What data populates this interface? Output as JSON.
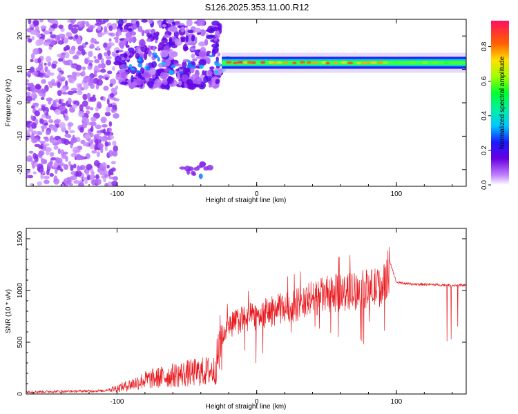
{
  "title": "S126.2025.353.11.00.R12",
  "chart_data": [
    {
      "type": "heatmap",
      "xlabel": "Height of straight line (km)",
      "ylabel": "Frequency (Hz)",
      "xlim": [
        -165,
        150
      ],
      "ylim": [
        -25,
        25
      ],
      "xticks": [
        -100,
        0,
        100
      ],
      "yticks": [
        -20,
        -10,
        0,
        10,
        20
      ],
      "xtick_labels": [
        "-100",
        "0",
        "100"
      ],
      "ytick_labels": [
        "-20",
        "-10",
        "0",
        "10",
        "20"
      ],
      "colorbar": {
        "label": "Normalized spectral amplitude",
        "range": [
          0,
          0.95
        ],
        "ticks": [
          0.0,
          0.2,
          0.4,
          0.6,
          0.8
        ],
        "tick_labels": [
          "0.0",
          "0.2",
          "0.4",
          "0.6",
          "0.8"
        ]
      },
      "regions": [
        {
          "name": "noise",
          "x_range": [
            -165,
            -100
          ],
          "freq_range": [
            -25,
            25
          ],
          "typical_amplitude": 0.05
        },
        {
          "name": "turbulent-signal",
          "x_range": [
            -100,
            -25
          ],
          "freq_range": [
            5,
            25
          ],
          "typical_amplitude": 0.1
        },
        {
          "name": "tone-line",
          "x_range": [
            -25,
            150
          ],
          "center_freq_hz": 12,
          "typical_amplitude": 0.45
        }
      ]
    },
    {
      "type": "line",
      "xlabel": "Height of straight line (km)",
      "ylabel": "SNR (10 * v/v)",
      "xlim": [
        -165,
        150
      ],
      "ylim": [
        0,
        1600
      ],
      "xticks": [
        -100,
        0,
        100
      ],
      "yticks": [
        0,
        500,
        1000,
        1500
      ],
      "xtick_labels": [
        "-100",
        "0",
        "100"
      ],
      "ytick_labels": [
        "0",
        "500",
        "1000",
        "1500"
      ],
      "series": [
        {
          "name": "SNR",
          "color": "#e8191e",
          "x": [
            -165,
            -140,
            -110,
            -95,
            -80,
            -60,
            -45,
            -30,
            -25,
            -20,
            -10,
            0,
            10,
            20,
            30,
            40,
            50,
            60,
            70,
            80,
            90,
            95,
            100,
            110,
            120,
            130,
            140,
            150
          ],
          "y": [
            20,
            25,
            30,
            80,
            150,
            200,
            230,
            250,
            600,
            720,
            780,
            820,
            860,
            900,
            940,
            1000,
            1040,
            1060,
            1080,
            1100,
            1120,
            1300,
            1080,
            1060,
            1060,
            1055,
            1050,
            1050
          ]
        }
      ]
    }
  ]
}
